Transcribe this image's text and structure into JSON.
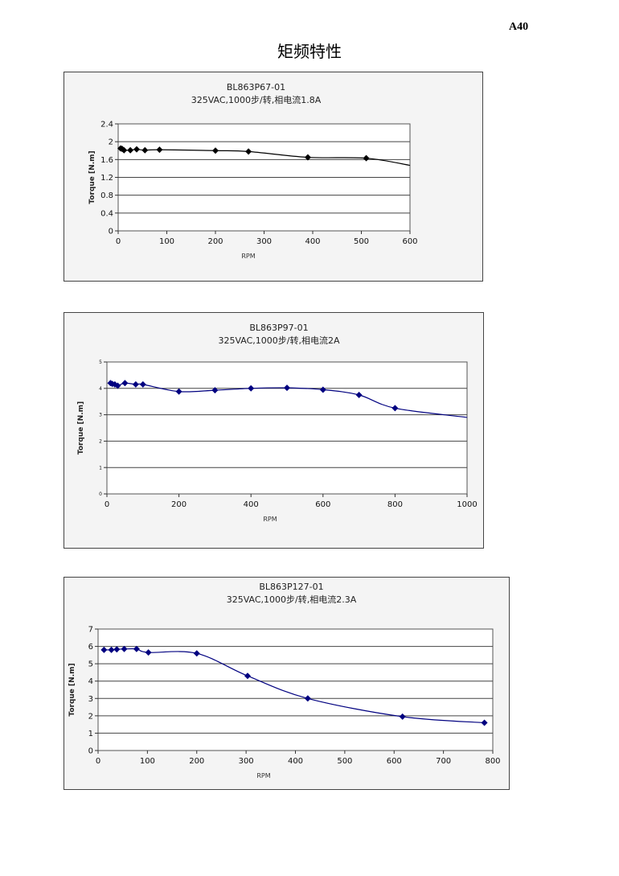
{
  "page": {
    "number": "A40",
    "title": "矩频特性"
  },
  "chart_data": [
    {
      "type": "line",
      "title": "BL863P67-01",
      "subtitle": "325VAC,1000步/转,相电流1.8A",
      "xlabel": "RPM",
      "ylabel": "Torque  [N.m]",
      "xlim": [
        0,
        600
      ],
      "ylim": [
        0,
        2.4
      ],
      "xticks": [
        0,
        100,
        200,
        300,
        400,
        500,
        600
      ],
      "yticks": [
        0,
        0.4,
        0.8,
        1.2,
        1.6,
        2,
        2.4
      ],
      "grid": "horizontal",
      "legend": "none",
      "color": "#000000",
      "marker": "diamond",
      "x": [
        5,
        8,
        12,
        25,
        38,
        55,
        85,
        200,
        268,
        390,
        510
      ],
      "y": [
        1.85,
        1.84,
        1.81,
        1.81,
        1.83,
        1.81,
        1.82,
        1.8,
        1.78,
        1.65,
        1.63
      ],
      "curve_end": [
        600,
        1.47
      ]
    },
    {
      "type": "line",
      "title": "BL863P97-01",
      "subtitle": "325VAC,1000步/转,相电流2A",
      "xlabel": "RPM",
      "ylabel": "Torque  [N.m]",
      "xlim": [
        0,
        1000
      ],
      "ylim": [
        0,
        5
      ],
      "xticks": [
        0,
        200,
        400,
        600,
        800,
        1000
      ],
      "yticks": [
        0,
        1,
        2,
        3,
        4,
        5
      ],
      "grid": "horizontal",
      "legend": "none",
      "color": "#000080",
      "marker": "diamond",
      "x": [
        10,
        15,
        22,
        30,
        50,
        80,
        100,
        200,
        300,
        400,
        500,
        600,
        700,
        800
      ],
      "y": [
        4.2,
        4.17,
        4.15,
        4.1,
        4.2,
        4.15,
        4.15,
        3.88,
        3.93,
        4.0,
        4.02,
        3.95,
        3.75,
        3.25
      ],
      "curve_end": [
        1000,
        2.9
      ]
    },
    {
      "type": "line",
      "title": "BL863P127-01",
      "subtitle": "325VAC,1000步/转,相电流2.3A",
      "xlabel": "RPM",
      "ylabel": "Torque  [N.m]",
      "xlim": [
        0,
        800
      ],
      "ylim": [
        0,
        7
      ],
      "xticks": [
        0,
        100,
        200,
        300,
        400,
        500,
        600,
        700,
        800
      ],
      "yticks": [
        0,
        1,
        2,
        3,
        4,
        5,
        6,
        7
      ],
      "grid": "horizontal",
      "legend": "none",
      "color": "#000080",
      "marker": "diamond",
      "x": [
        12,
        27,
        38,
        53,
        78,
        102,
        200,
        303,
        425,
        617,
        783
      ],
      "y": [
        5.8,
        5.8,
        5.83,
        5.85,
        5.85,
        5.65,
        5.6,
        4.3,
        3.0,
        1.95,
        1.6
      ]
    }
  ]
}
